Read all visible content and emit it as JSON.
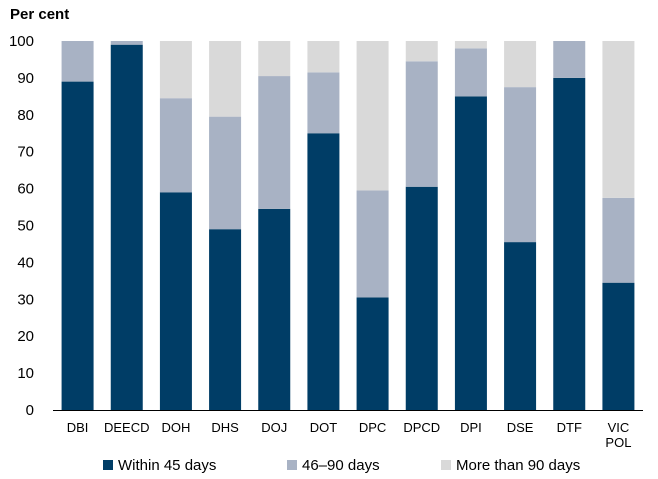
{
  "chart_data": {
    "type": "bar",
    "stacked": true,
    "title": "",
    "ylabel": "Per cent",
    "xlabel": "",
    "ylim": [
      0,
      100
    ],
    "yticks": [
      0,
      10,
      20,
      30,
      40,
      50,
      60,
      70,
      80,
      90,
      100
    ],
    "grid": false,
    "legend": "bottom",
    "categories": [
      "DBI",
      "DEECD",
      "DOH",
      "DHS",
      "DOJ",
      "DOT",
      "DPC",
      "DPCD",
      "DPI",
      "DSE",
      "DTF",
      "VIC POL"
    ],
    "category_lines": [
      [
        "DBI"
      ],
      [
        "DEECD"
      ],
      [
        "DOH"
      ],
      [
        "DHS"
      ],
      [
        "DOJ"
      ],
      [
        "DOT"
      ],
      [
        "DPC"
      ],
      [
        "DPCD"
      ],
      [
        "DPI"
      ],
      [
        "DSE"
      ],
      [
        "DTF"
      ],
      [
        "VIC",
        "POL"
      ]
    ],
    "series": [
      {
        "name": "Within 45 days",
        "color": "#003d66",
        "values": [
          89,
          99,
          59,
          49,
          54.5,
          75,
          30.5,
          60.5,
          85,
          45.5,
          90,
          34.5
        ]
      },
      {
        "name": "46–90 days",
        "color": "#a8b2c4",
        "values": [
          11,
          1,
          25.5,
          30.5,
          36,
          16.5,
          29,
          34,
          13,
          42,
          10,
          23
        ]
      },
      {
        "name": "More than 90 days",
        "color": "#d9d9d9",
        "values": [
          0,
          0,
          15.5,
          20.5,
          9.5,
          8.5,
          40.5,
          5.5,
          2,
          12.5,
          0,
          42.5
        ]
      }
    ]
  }
}
